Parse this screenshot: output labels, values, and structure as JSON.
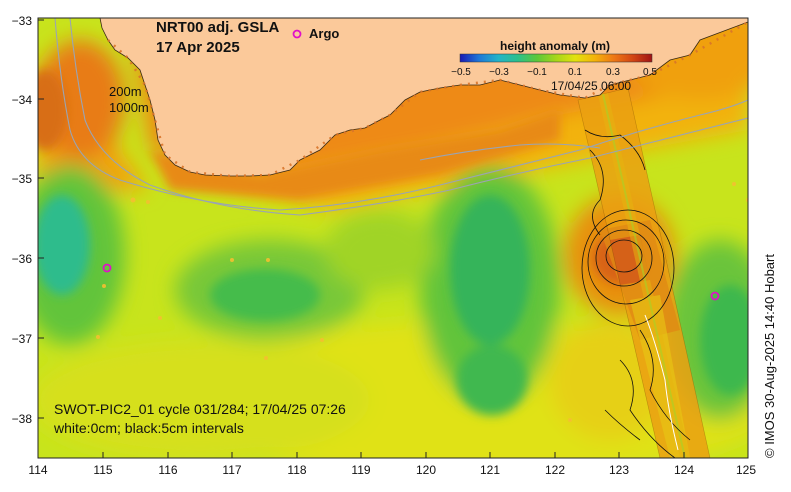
{
  "map": {
    "title": "NRT00 adj. GSLA",
    "date": "17 Apr 2025",
    "legend_argo_label": "Argo",
    "colorbar": {
      "title": "height anomaly (m)",
      "ticks": [
        "−0.5",
        "−0.3",
        "−0.1",
        "0.1",
        "0.3",
        "0.5"
      ],
      "colors": [
        "#1a1ab4",
        "#1e78d8",
        "#22b4c8",
        "#2cc08c",
        "#5cc83a",
        "#a6d61a",
        "#e2e20e",
        "#f4b40a",
        "#ee7814",
        "#d24614",
        "#a01414"
      ]
    },
    "swath_time": "17/04/25 06:00",
    "depth_labels": [
      "200m",
      "1000m"
    ],
    "x_ticks": [
      "114",
      "115",
      "116",
      "117",
      "118",
      "119",
      "120",
      "121",
      "122",
      "123",
      "124",
      "125"
    ],
    "y_ticks": [
      "−33",
      "−34",
      "−35",
      "−36",
      "−37",
      "−38"
    ],
    "swot_line1": "SWOT-PIC2_01 cycle 031/284; 17/04/25 07:26",
    "swot_line2": "white:0cm; black:5cm intervals",
    "credit": "© IMOS 30-Aug-2025 14:40 Hobart",
    "colors": {
      "land": "#fbc99a",
      "ocean_mid": "#c6e61a",
      "argo_marker": "#e010c8"
    }
  }
}
